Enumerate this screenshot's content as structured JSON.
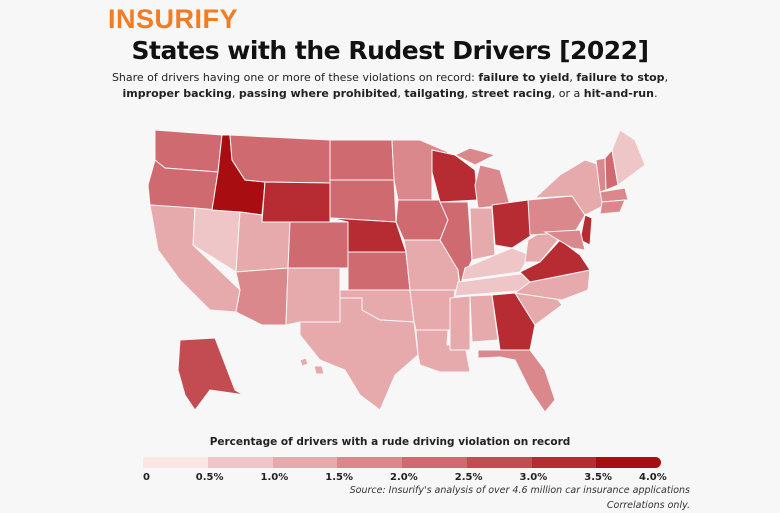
{
  "brand": "INSURIFY",
  "title": "States with the Rudest Drivers [2022]",
  "subtitle": {
    "intro": "Share of drivers having one or more of these violations on record: ",
    "items": [
      "failure to yield",
      "failure to stop",
      "improper backing",
      "passing where prohibited",
      "tailgating",
      "street racing",
      "hit-and-run"
    ],
    "sep": ", ",
    "or": ", or a ",
    "end": "."
  },
  "legend": {
    "title": "Percentage of drivers with a rude driving violation on record",
    "ticks": [
      "0",
      "0.5%",
      "1.0%",
      "1.5%",
      "2.0%",
      "2.5%",
      "3.0%",
      "3.5%",
      "4.0%"
    ],
    "colors": [
      "#fbe6e6",
      "#efc6c8",
      "#e6a9ac",
      "#da888c",
      "#cf6a70",
      "#c34c52",
      "#b72c32",
      "#a80d12"
    ]
  },
  "source": "Source: Insurify's analysis of over 4.6 million car insurance applications",
  "note": "Correlations only.",
  "chart_data": {
    "type": "choropleth",
    "unit": "percent",
    "range": [
      0,
      4.0
    ],
    "values": {
      "WA": 2.2,
      "OR": 2.4,
      "CA": 1.4,
      "NV": 0.9,
      "ID": 3.8,
      "MT": 2.2,
      "WY": 3.0,
      "UT": 1.3,
      "AZ": 1.6,
      "CO": 2.2,
      "NM": 1.2,
      "ND": 2.2,
      "SD": 2.4,
      "NE": 3.0,
      "KS": 2.4,
      "OK": 1.2,
      "TX": 1.2,
      "MN": 1.6,
      "IA": 2.3,
      "MO": 1.1,
      "AR": 1.1,
      "LA": 1.1,
      "WI": 3.2,
      "IL": 2.0,
      "MI": 1.8,
      "IN": 1.2,
      "OH": 3.2,
      "KY": 0.9,
      "TN": 0.7,
      "MS": 1.2,
      "AL": 1.3,
      "GA": 3.0,
      "FL": 1.8,
      "SC": 1.2,
      "NC": 1.3,
      "VA": 3.1,
      "WV": 1.3,
      "PA": 1.7,
      "NY": 1.4,
      "VT": 1.6,
      "NH": 2.3,
      "ME": 0.6,
      "MA": 1.7,
      "CT": 1.5,
      "NJ": 3.0,
      "MD": 1.8,
      "AK": 2.6,
      "HI": 1.0
    }
  }
}
